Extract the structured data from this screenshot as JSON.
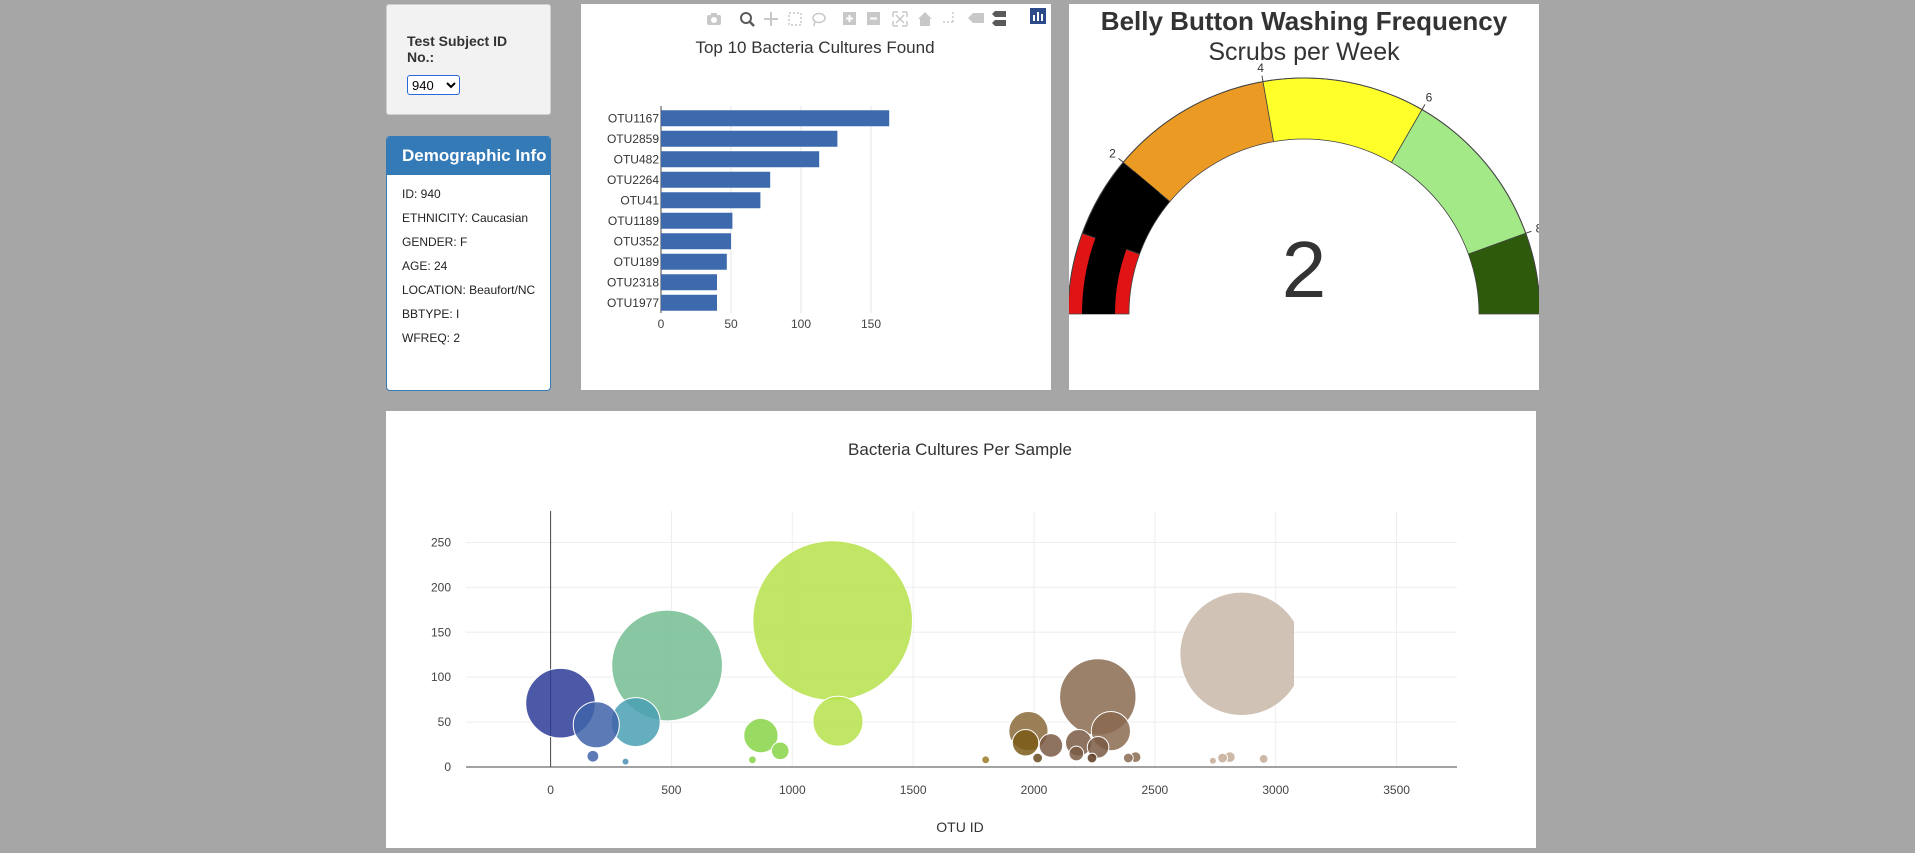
{
  "selector": {
    "label": "Test Subject ID No.:",
    "selected": "940"
  },
  "demographics": {
    "heading": "Demographic Info",
    "rows": [
      "ID: 940",
      "ETHNICITY: Caucasian",
      "GENDER: F",
      "AGE: 24",
      "LOCATION: Beaufort/NC",
      "BBTYPE: I",
      "WFREQ: 2"
    ]
  },
  "modebar": {
    "icons": [
      "camera-icon",
      "zoom-icon",
      "pan-icon",
      "box-select-icon",
      "lasso-icon",
      "zoom-in-icon",
      "zoom-out-icon",
      "autoscale-icon",
      "reset-axes-icon",
      "spike-lines-icon",
      "hover-closest-icon",
      "hover-compare-icon",
      "plotly-logo-icon"
    ]
  },
  "colors": {
    "bar": "#3c6aad",
    "gauge_text": "#333333",
    "page_bg": "#a6a6a6"
  },
  "chart_data": [
    {
      "type": "bar",
      "orientation": "horizontal",
      "title": "Top 10 Bacteria Cultures Found",
      "categories": [
        "OTU1167",
        "OTU2859",
        "OTU482",
        "OTU2264",
        "OTU41",
        "OTU1189",
        "OTU352",
        "OTU189",
        "OTU2318",
        "OTU1977"
      ],
      "values": [
        163,
        126,
        113,
        78,
        71,
        51,
        50,
        47,
        40,
        40
      ],
      "xlim": [
        0,
        175
      ],
      "xticks": [
        0,
        50,
        100,
        150
      ],
      "xlabel": "",
      "ylabel": "",
      "grid": true
    },
    {
      "type": "gauge",
      "title": "Belly Button Washing Frequency",
      "subtitle": "Scrubs per Week",
      "value": 2,
      "range": [
        0,
        9
      ],
      "ticks": [
        2,
        4,
        6,
        8
      ],
      "steps": [
        {
          "from": 0,
          "to": 1,
          "color": "#e01414"
        },
        {
          "from": 1,
          "to": 2,
          "color": "#000000"
        },
        {
          "from": 2,
          "to": 4,
          "color": "#eb9b24"
        },
        {
          "from": 4,
          "to": 6,
          "color": "#ffff2a"
        },
        {
          "from": 6,
          "to": 8,
          "color": "#a4e987"
        },
        {
          "from": 8,
          "to": 9,
          "color": "#2d5a0b"
        }
      ]
    },
    {
      "type": "scatter",
      "title": "Bacteria Cultures Per Sample",
      "xlabel": "OTU ID",
      "ylabel": "",
      "xlim": [
        -350,
        3750
      ],
      "ylim": [
        0,
        285
      ],
      "xticks": [
        0,
        500,
        1000,
        1500,
        2000,
        2500,
        3000,
        3500
      ],
      "yticks": [
        0,
        50,
        100,
        150,
        200,
        250
      ],
      "grid": true,
      "points": [
        {
          "x": 41,
          "y": 71,
          "color": "#2d3c96"
        },
        {
          "x": 189,
          "y": 47,
          "color": "#3f63a8"
        },
        {
          "x": 352,
          "y": 50,
          "color": "#4aa0b4"
        },
        {
          "x": 482,
          "y": 113,
          "color": "#73bd92"
        },
        {
          "x": 175,
          "y": 12,
          "color": "#3f63a8"
        },
        {
          "x": 310,
          "y": 6,
          "color": "#4a8fb4"
        },
        {
          "x": 870,
          "y": 35,
          "color": "#86d447"
        },
        {
          "x": 950,
          "y": 18,
          "color": "#86d447"
        },
        {
          "x": 835,
          "y": 8,
          "color": "#86d447"
        },
        {
          "x": 1167,
          "y": 163,
          "color": "#b6e14a"
        },
        {
          "x": 1189,
          "y": 51,
          "color": "#b6e14a"
        },
        {
          "x": 1800,
          "y": 8,
          "color": "#9b7a28"
        },
        {
          "x": 1977,
          "y": 40,
          "color": "#8a6a3a"
        },
        {
          "x": 1965,
          "y": 27,
          "color": "#7a5a18"
        },
        {
          "x": 2070,
          "y": 24,
          "color": "#7a5a44"
        },
        {
          "x": 2015,
          "y": 10,
          "color": "#6a4a20"
        },
        {
          "x": 2264,
          "y": 78,
          "color": "#8a6a50"
        },
        {
          "x": 2318,
          "y": 40,
          "color": "#8a6a50"
        },
        {
          "x": 2185,
          "y": 27,
          "color": "#7a5a44"
        },
        {
          "x": 2265,
          "y": 22,
          "color": "#7a5a44"
        },
        {
          "x": 2175,
          "y": 15,
          "color": "#7a5a44"
        },
        {
          "x": 2240,
          "y": 10,
          "color": "#5a3a20"
        },
        {
          "x": 2390,
          "y": 10,
          "color": "#8a6a50"
        },
        {
          "x": 2420,
          "y": 11,
          "color": "#8a6a50"
        },
        {
          "x": 2859,
          "y": 126,
          "color": "#c8b8a8"
        },
        {
          "x": 2780,
          "y": 10,
          "color": "#c4ac98"
        },
        {
          "x": 2810,
          "y": 11,
          "color": "#c4ac98"
        },
        {
          "x": 2950,
          "y": 9,
          "color": "#c4ac98"
        },
        {
          "x": 2740,
          "y": 7,
          "color": "#c4ac98"
        }
      ]
    }
  ]
}
